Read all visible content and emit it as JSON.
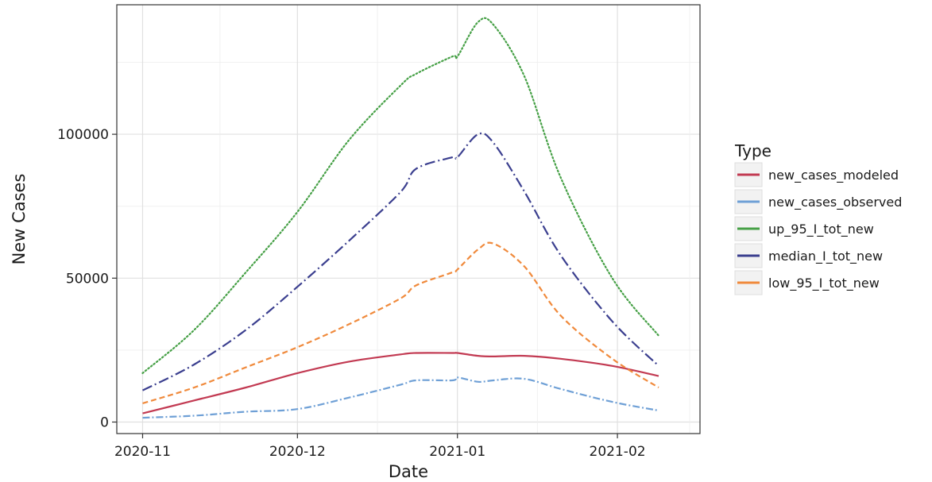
{
  "chart_data": {
    "type": "line",
    "xlabel": "Date",
    "ylabel": "New Cases",
    "x_ticks": [
      "2020-11",
      "2020-12",
      "2021-01",
      "2021-02"
    ],
    "y_ticks": [
      0,
      50000,
      100000
    ],
    "y_tick_labels": [
      "0",
      "50000",
      "100000"
    ],
    "xlim": [
      "2020-10-27",
      "2021-02-17"
    ],
    "ylim": [
      -4000,
      145000
    ],
    "grid": true,
    "legend": {
      "title": "Type",
      "position": "right"
    },
    "x": [
      "2020-11-01",
      "2020-11-11",
      "2020-11-21",
      "2020-12-01",
      "2020-12-11",
      "2020-12-21",
      "2020-12-24",
      "2020-12-31",
      "2021-01-01",
      "2021-01-05",
      "2021-01-08",
      "2021-01-14",
      "2021-01-21",
      "2021-01-31",
      "2021-02-09"
    ],
    "series": [
      {
        "name": "new_cases_modeled",
        "color": "#c23a52",
        "dash": "solid",
        "values": [
          3000,
          7500,
          12000,
          17000,
          21000,
          23500,
          24000,
          24000,
          24000,
          23000,
          22800,
          23000,
          22000,
          19500,
          16000
        ]
      },
      {
        "name": "new_cases_observed",
        "color": "#6fa0d6",
        "dash": "dashdot",
        "values": [
          1500,
          2200,
          3600,
          4500,
          8500,
          13000,
          14500,
          14500,
          15500,
          14000,
          14500,
          15000,
          11500,
          7000,
          4000
        ]
      },
      {
        "name": "up_95_I_tot_new",
        "color": "#46a046",
        "dash": "dotted",
        "values": [
          17000,
          32000,
          52000,
          73000,
          98000,
          117000,
          121000,
          127000,
          127000,
          139000,
          138000,
          120000,
          85000,
          50000,
          30000
        ]
      },
      {
        "name": "median_I_tot_new",
        "color": "#3b3f8f",
        "dash": "longdashdot",
        "values": [
          11000,
          20000,
          32000,
          47000,
          63000,
          80000,
          88000,
          92000,
          92000,
          100000,
          97000,
          80000,
          58000,
          35000,
          19500
        ]
      },
      {
        "name": "low_95_I_tot_new",
        "color": "#f08a3c",
        "dash": "dashed",
        "values": [
          6500,
          12000,
          19000,
          26000,
          34000,
          43000,
          47500,
          52000,
          53000,
          60000,
          62000,
          54000,
          37000,
          22000,
          12000
        ]
      }
    ]
  }
}
